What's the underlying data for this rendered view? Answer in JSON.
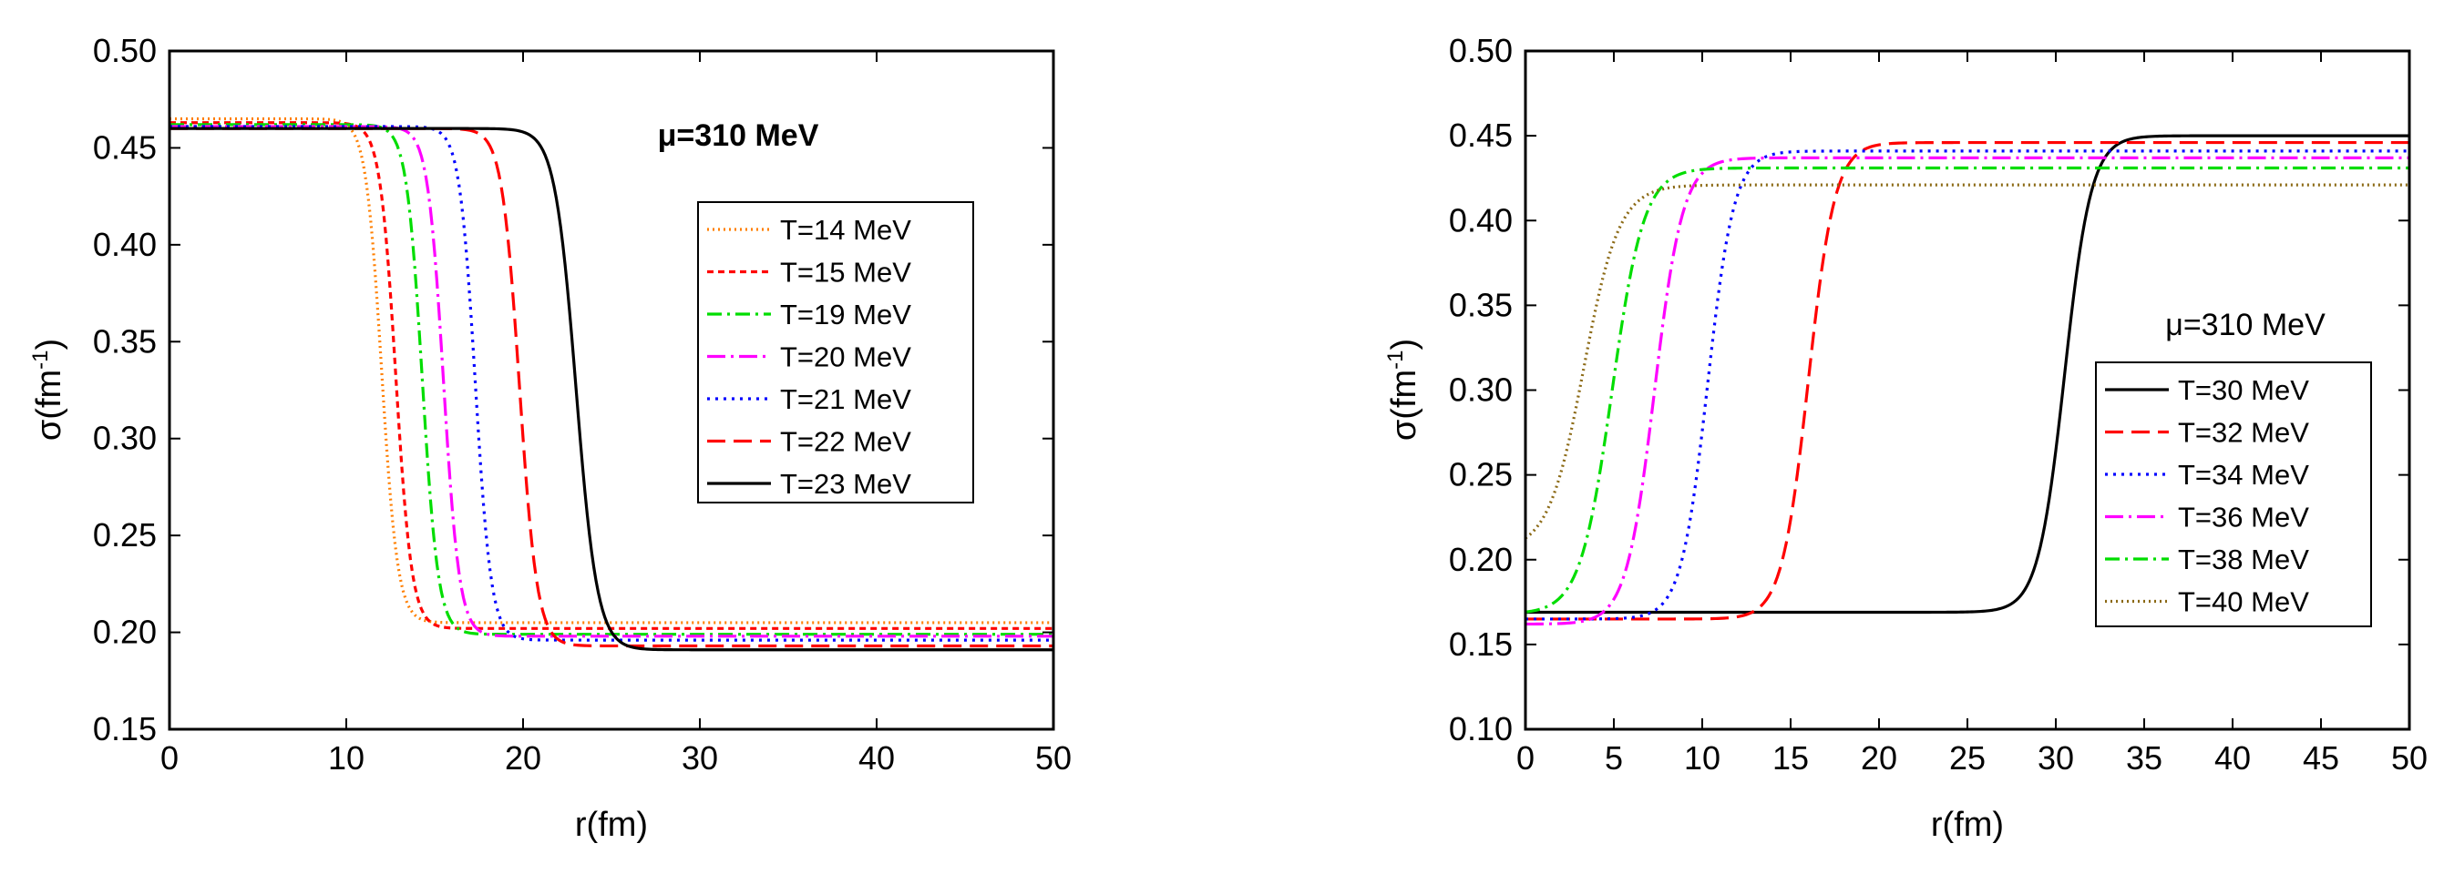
{
  "chart_data": [
    {
      "type": "line",
      "xlabel": "r(fm)",
      "ylabel_main": "σ(fm",
      "ylabel_sup": "-1",
      "ylabel_close": ")",
      "xlim": [
        0,
        50
      ],
      "ylim": [
        0.15,
        0.5
      ],
      "xticks": [
        0,
        10,
        20,
        30,
        40,
        50
      ],
      "yticks": [
        0.15,
        0.2,
        0.25,
        0.3,
        0.35,
        0.4,
        0.45,
        0.5
      ],
      "xtick_labels": [
        "0",
        "10",
        "20",
        "30",
        "40",
        "50"
      ],
      "ytick_labels": [
        "0.15",
        "0.20",
        "0.25",
        "0.30",
        "0.35",
        "0.40",
        "0.45",
        "0.50"
      ],
      "annotation": "μ=310 MeV",
      "legend_position": "right",
      "series": [
        {
          "name": "T=14 MeV",
          "color": "#ff7f00",
          "dash": "2 4",
          "y_in": 0.465,
          "y_out": 0.205,
          "r0": 12.0,
          "w": 0.45
        },
        {
          "name": "T=15 MeV",
          "color": "#ff0000",
          "dash": "7 5",
          "y_in": 0.463,
          "y_out": 0.202,
          "r0": 12.8,
          "w": 0.45
        },
        {
          "name": "T=19 MeV",
          "color": "#00dd00",
          "dash": "16 6 3 6",
          "y_in": 0.462,
          "y_out": 0.199,
          "r0": 14.3,
          "w": 0.45
        },
        {
          "name": "T=20 MeV",
          "color": "#ff00ff",
          "dash": "20 6 3 6",
          "y_in": 0.461,
          "y_out": 0.198,
          "r0": 15.5,
          "w": 0.45
        },
        {
          "name": "T=21 MeV",
          "color": "#0000ff",
          "dash": "3 6",
          "y_in": 0.461,
          "y_out": 0.196,
          "r0": 17.3,
          "w": 0.45
        },
        {
          "name": "T=22 MeV",
          "color": "#ff0000",
          "dash": "20 9",
          "y_in": 0.46,
          "y_out": 0.193,
          "r0": 19.8,
          "w": 0.5
        },
        {
          "name": "T=23 MeV",
          "color": "#000000",
          "dash": "",
          "y_in": 0.46,
          "y_out": 0.191,
          "r0": 23.0,
          "w": 0.6
        }
      ]
    },
    {
      "type": "line",
      "xlabel": "r(fm)",
      "ylabel_main": "σ(fm",
      "ylabel_sup": "-1",
      "ylabel_close": ")",
      "xlim": [
        0,
        50
      ],
      "ylim": [
        0.1,
        0.5
      ],
      "xticks": [
        0,
        5,
        10,
        15,
        20,
        25,
        30,
        35,
        40,
        45,
        50
      ],
      "yticks": [
        0.1,
        0.15,
        0.2,
        0.25,
        0.3,
        0.35,
        0.4,
        0.45,
        0.5
      ],
      "xtick_labels": [
        "0",
        "5",
        "10",
        "15",
        "20",
        "25",
        "30",
        "35",
        "40",
        "45",
        "50"
      ],
      "ytick_labels": [
        "0.10",
        "0.15",
        "0.20",
        "0.25",
        "0.30",
        "0.35",
        "0.40",
        "0.45",
        "0.50"
      ],
      "annotation": "μ=310 MeV",
      "legend_position": "right",
      "series": [
        {
          "name": "T=30 MeV",
          "color": "#000000",
          "dash": "",
          "y_in": 0.169,
          "y_out": 0.45,
          "r0": 30.5,
          "w": 0.75
        },
        {
          "name": "T=32 MeV",
          "color": "#ff0000",
          "dash": "20 9",
          "y_in": 0.165,
          "y_out": 0.446,
          "r0": 16.0,
          "w": 0.75
        },
        {
          "name": "T=34 MeV",
          "color": "#0000ff",
          "dash": "3 6",
          "y_in": 0.165,
          "y_out": 0.441,
          "r0": 10.3,
          "w": 0.75
        },
        {
          "name": "T=36 MeV",
          "color": "#ff00ff",
          "dash": "20 6 3 6",
          "y_in": 0.162,
          "y_out": 0.437,
          "r0": 7.3,
          "w": 0.8
        },
        {
          "name": "T=38 MeV",
          "color": "#00dd00",
          "dash": "16 6 3 6",
          "y_in": 0.168,
          "y_out": 0.431,
          "r0": 4.9,
          "w": 0.9
        },
        {
          "name": "T=40 MeV",
          "color": "#8b6914",
          "dash": "2 4",
          "y_in": 0.205,
          "y_out": 0.421,
          "r0": 3.3,
          "w": 1.0
        }
      ]
    }
  ]
}
